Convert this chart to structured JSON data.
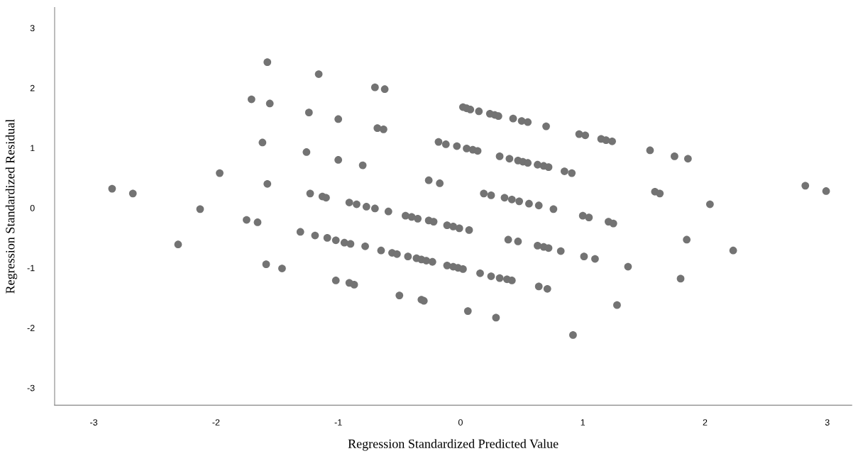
{
  "chart_data": {
    "type": "scatter",
    "xlabel": "Regression Standardized Predicted Value",
    "ylabel": "Regression Standardized Residual",
    "xlim": [
      -3.32,
      3.2
    ],
    "xticks": [
      -3,
      -2,
      -1,
      0,
      1,
      2,
      3
    ],
    "ylim": [
      -3.29,
      3.34
    ],
    "yticks": [
      -3,
      -2,
      -1,
      0,
      1,
      2,
      3
    ],
    "grid": false,
    "marker": "circle",
    "series": [
      {
        "color": "#737373",
        "x": [
          -2.85,
          -2.68,
          -1.97,
          -2.13,
          -2.31,
          -1.58,
          -1.71,
          -1.56,
          -1.62,
          -1.58,
          -1.75,
          -1.66,
          -1.59,
          -1.46,
          -1.16,
          -0.7,
          -0.62,
          -1.24,
          -1.0,
          -0.68,
          -0.63,
          -1.26,
          -1.0,
          -0.8,
          -0.26,
          -0.17,
          0.02,
          0.05,
          0.08,
          0.15,
          0.24,
          0.28,
          0.31,
          0.43,
          0.5,
          0.55,
          0.7,
          -0.18,
          -0.12,
          -0.03,
          0.05,
          0.1,
          0.14,
          0.32,
          0.4,
          0.47,
          0.51,
          0.55,
          0.63,
          0.68,
          0.72,
          0.85,
          0.91,
          -1.23,
          -1.13,
          -1.1,
          -0.91,
          -0.85,
          -0.77,
          -0.7,
          -0.59,
          -0.45,
          -0.4,
          -0.35,
          -0.26,
          -0.22,
          -0.11,
          -0.06,
          -0.01,
          0.07,
          0.19,
          0.25,
          0.36,
          0.42,
          0.48,
          0.56,
          0.64,
          0.76,
          -1.31,
          -1.19,
          -1.09,
          -1.02,
          -0.95,
          -0.9,
          -0.78,
          -0.65,
          -0.56,
          -0.52,
          -0.43,
          -0.36,
          -0.32,
          -0.28,
          -0.23,
          -0.11,
          -0.06,
          -0.02,
          0.02,
          0.16,
          0.25,
          0.32,
          0.38,
          0.42,
          0.39,
          0.47,
          0.63,
          0.68,
          0.72,
          0.82,
          0.64,
          0.71,
          -1.02,
          -0.91,
          -0.87,
          -0.5,
          -0.32,
          -0.3,
          0.06,
          0.29,
          0.92,
          0.97,
          1.02,
          1.15,
          1.19,
          1.24,
          1.55,
          1.75,
          1.86,
          1.59,
          1.63,
          2.82,
          2.99,
          2.04,
          1.0,
          1.05,
          1.21,
          1.25,
          1.85,
          2.23,
          1.01,
          1.1,
          1.37,
          1.8,
          1.28
        ],
        "values": [
          0.32,
          0.24,
          0.58,
          -0.02,
          -0.61,
          2.43,
          1.81,
          1.74,
          1.09,
          0.4,
          -0.2,
          -0.24,
          -0.94,
          -1.01,
          2.23,
          2.01,
          1.98,
          1.59,
          1.48,
          1.33,
          1.31,
          0.93,
          0.8,
          0.71,
          0.46,
          0.41,
          1.68,
          1.66,
          1.64,
          1.61,
          1.57,
          1.55,
          1.53,
          1.49,
          1.45,
          1.43,
          1.36,
          1.1,
          1.06,
          1.03,
          0.99,
          0.97,
          0.95,
          0.86,
          0.82,
          0.79,
          0.77,
          0.75,
          0.72,
          0.7,
          0.68,
          0.61,
          0.58,
          0.24,
          0.19,
          0.17,
          0.09,
          0.06,
          0.02,
          -0.01,
          -0.06,
          -0.13,
          -0.15,
          -0.18,
          -0.21,
          -0.23,
          -0.29,
          -0.31,
          -0.34,
          -0.37,
          0.24,
          0.21,
          0.17,
          0.14,
          0.11,
          0.07,
          0.04,
          -0.02,
          -0.4,
          -0.46,
          -0.5,
          -0.54,
          -0.58,
          -0.6,
          -0.64,
          -0.71,
          -0.75,
          -0.77,
          -0.81,
          -0.84,
          -0.86,
          -0.88,
          -0.9,
          -0.96,
          -0.98,
          -1.0,
          -1.02,
          -1.09,
          -1.14,
          -1.17,
          -1.19,
          -1.21,
          -0.53,
          -0.56,
          -0.63,
          -0.65,
          -0.67,
          -0.72,
          -1.31,
          -1.35,
          -1.21,
          -1.25,
          -1.28,
          -1.46,
          -1.53,
          -1.55,
          -1.72,
          -1.83,
          -2.12,
          1.23,
          1.21,
          1.15,
          1.13,
          1.11,
          0.96,
          0.86,
          0.82,
          0.27,
          0.24,
          0.37,
          0.28,
          0.06,
          -0.13,
          -0.16,
          -0.23,
          -0.26,
          -0.53,
          -0.71,
          -0.81,
          -0.85,
          -0.98,
          -1.18,
          -1.62
        ]
      }
    ]
  }
}
